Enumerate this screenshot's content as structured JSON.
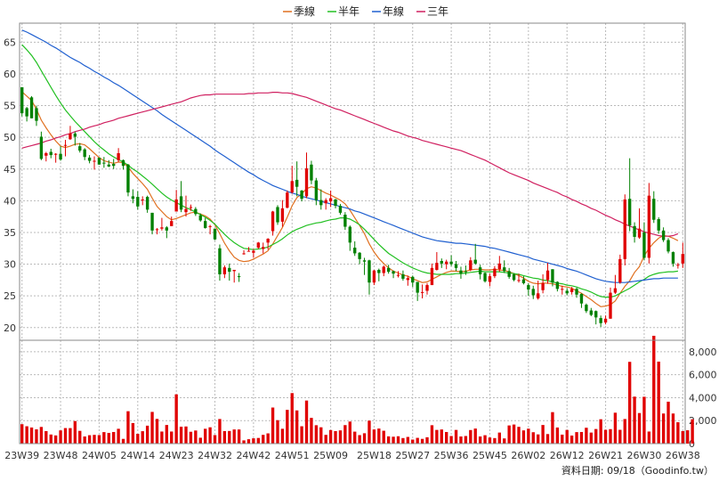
{
  "legend": [
    {
      "label": "季線",
      "color": "#e07020"
    },
    {
      "label": "半年",
      "color": "#22c022"
    },
    {
      "label": "年線",
      "color": "#2060d0"
    },
    {
      "label": "三年",
      "color": "#d02060"
    }
  ],
  "footer_note": "資料日期: 09/18（Goodinfo.tw）",
  "colors": {
    "up": "#e00000",
    "down": "#008000",
    "volume": "#e00000",
    "grid": "#bbbbbb"
  },
  "chart_data": {
    "type": "candlestick",
    "price_axis": {
      "min": 18,
      "max": 68,
      "ticks": [
        20,
        25,
        30,
        35,
        40,
        45,
        50,
        55,
        60,
        65
      ],
      "position": "left"
    },
    "volume_axis": {
      "min": 0,
      "max": 9000,
      "ticks": [
        0,
        2000,
        4000,
        6000,
        8000
      ],
      "tick_labels": [
        "0",
        "2,000",
        "4,000",
        "6,000",
        "8,000"
      ],
      "position": "right"
    },
    "x_labels": [
      "23W39",
      "23W48",
      "24W05",
      "24W14",
      "24W23",
      "24W32",
      "24W42",
      "24W51",
      "25W09",
      "25W18",
      "25W27",
      "25W36",
      "25W45",
      "26W02",
      "26W12",
      "26W21",
      "26W30",
      "26W38"
    ],
    "candles": [
      [
        57.9,
        53.8,
        57.2,
        53.3
      ],
      [
        54.6,
        53.3,
        54.8,
        52.5
      ],
      [
        56.3,
        53.0,
        56.5,
        53.0
      ],
      [
        54.6,
        52.6,
        55.0,
        51.8
      ],
      [
        50.1,
        46.6,
        50.9,
        46.4
      ],
      [
        47.1,
        47.5,
        47.7,
        46.2
      ],
      [
        47.7,
        47.2,
        48.2,
        46.7
      ],
      [
        47.3,
        47.4,
        47.5,
        46.0
      ],
      [
        47.4,
        46.5,
        48.6,
        46.3
      ],
      [
        48.7,
        48.8,
        49.6,
        47.0
      ],
      [
        49.7,
        50.6,
        51.8,
        49.6
      ],
      [
        50.6,
        50.1,
        50.9,
        48.7
      ],
      [
        48.6,
        47.9,
        49.1,
        47.6
      ],
      [
        48.1,
        46.9,
        48.3,
        46.4
      ],
      [
        46.8,
        46.3,
        47.2,
        45.9
      ],
      [
        46.3,
        46.3,
        47.0,
        44.9
      ],
      [
        46.8,
        45.7,
        46.8,
        45.7
      ],
      [
        46.0,
        45.9,
        46.9,
        45.2
      ],
      [
        45.7,
        45.4,
        46.4,
        45.3
      ],
      [
        45.8,
        45.5,
        46.6,
        45.0
      ],
      [
        46.4,
        47.5,
        48.3,
        46.1
      ],
      [
        46.4,
        45.5,
        46.5,
        44.9
      ],
      [
        45.7,
        41.3,
        45.8,
        40.7
      ],
      [
        40.7,
        40.3,
        41.8,
        39.6
      ],
      [
        40.6,
        39.1,
        41.5,
        38.6
      ],
      [
        40.2,
        40.2,
        40.7,
        39.3
      ],
      [
        40.6,
        38.6,
        40.8,
        38.1
      ],
      [
        38.1,
        35.3,
        38.1,
        34.7
      ],
      [
        35.4,
        35.5,
        35.7,
        34.7
      ],
      [
        35.6,
        35.8,
        37.3,
        35.3
      ],
      [
        35.8,
        35.3,
        36.0,
        34.1
      ],
      [
        36.0,
        36.8,
        37.5,
        36.0
      ],
      [
        38.3,
        40.2,
        41.7,
        38.3
      ],
      [
        40.7,
        38.6,
        43.1,
        38.2
      ],
      [
        38.2,
        38.7,
        40.8,
        37.5
      ],
      [
        38.9,
        39.0,
        39.4,
        38.4
      ],
      [
        38.7,
        37.9,
        39.0,
        37.6
      ],
      [
        37.7,
        36.9,
        38.0,
        36.7
      ],
      [
        36.8,
        35.7,
        37.3,
        35.6
      ],
      [
        35.9,
        36.0,
        36.2,
        34.7
      ],
      [
        35.6,
        33.9,
        35.6,
        33.8
      ],
      [
        32.5,
        28.4,
        33.1,
        27.4
      ],
      [
        28.4,
        29.5,
        29.8,
        27.8
      ],
      [
        29.4,
        28.8,
        30.1,
        27.4
      ],
      [
        28.9,
        29.1,
        29.1,
        27.1
      ],
      [
        28.1,
        28.0,
        28.6,
        27.2
      ],
      [
        31.7,
        31.7,
        32.2,
        31.5
      ],
      [
        32.0,
        32.1,
        32.7,
        32.0
      ],
      [
        31.8,
        32.1,
        32.4,
        31.0
      ],
      [
        32.6,
        33.4,
        33.5,
        32.4
      ],
      [
        32.4,
        32.7,
        33.4,
        31.7
      ],
      [
        33.4,
        34.0,
        34.1,
        32.3
      ],
      [
        35.2,
        38.3,
        38.4,
        34.5
      ],
      [
        39.0,
        36.6,
        39.3,
        36.2
      ],
      [
        36.7,
        38.8,
        40.1,
        35.9
      ],
      [
        38.9,
        41.3,
        41.6,
        38.8
      ],
      [
        41.3,
        43.1,
        45.5,
        41.1
      ],
      [
        43.3,
        42.2,
        46.2,
        40.7
      ],
      [
        41.6,
        40.3,
        41.7,
        39.9
      ],
      [
        40.7,
        45.1,
        47.6,
        40.4
      ],
      [
        45.7,
        43.2,
        46.3,
        42.6
      ],
      [
        43.2,
        40.1,
        43.6,
        39.3
      ],
      [
        40.1,
        39.3,
        41.8,
        38.6
      ],
      [
        39.6,
        40.1,
        40.4,
        38.6
      ],
      [
        39.9,
        40.4,
        41.6,
        39.0
      ],
      [
        40.2,
        39.2,
        40.3,
        38.8
      ],
      [
        39.2,
        38.1,
        39.5,
        37.8
      ],
      [
        37.8,
        35.9,
        38.2,
        35.4
      ],
      [
        35.9,
        33.4,
        36.1,
        32.1
      ],
      [
        32.6,
        31.7,
        33.6,
        31.3
      ],
      [
        31.8,
        30.8,
        31.9,
        30.0
      ],
      [
        30.6,
        30.4,
        31.0,
        28.3
      ],
      [
        30.6,
        27.1,
        30.7,
        25.2
      ],
      [
        27.1,
        29.0,
        29.1,
        26.7
      ],
      [
        29.1,
        28.6,
        29.3,
        27.3
      ],
      [
        28.6,
        29.6,
        29.8,
        28.1
      ],
      [
        29.4,
        28.8,
        29.9,
        28.5
      ],
      [
        28.9,
        28.5,
        29.0,
        27.8
      ],
      [
        28.3,
        28.3,
        28.9,
        27.9
      ],
      [
        28.4,
        27.7,
        29.0,
        27.4
      ],
      [
        27.5,
        27.8,
        28.2,
        26.6
      ],
      [
        28.0,
        27.1,
        28.2,
        26.4
      ],
      [
        27.2,
        25.5,
        27.2,
        24.2
      ],
      [
        25.5,
        25.6,
        26.8,
        24.6
      ],
      [
        25.8,
        26.7,
        27.0,
        25.2
      ],
      [
        26.7,
        29.4,
        30.1,
        26.7
      ],
      [
        29.1,
        30.2,
        31.9,
        29.0
      ],
      [
        30.5,
        30.1,
        30.9,
        29.4
      ],
      [
        30.0,
        30.4,
        30.7,
        29.2
      ],
      [
        30.4,
        30.0,
        31.4,
        29.7
      ],
      [
        30.0,
        29.4,
        30.5,
        28.9
      ],
      [
        29.0,
        28.5,
        29.6,
        27.7
      ],
      [
        28.9,
        28.8,
        29.8,
        28.3
      ],
      [
        29.1,
        30.6,
        31.1,
        28.9
      ],
      [
        30.7,
        30.1,
        33.2,
        29.9
      ],
      [
        29.5,
        28.4,
        29.9,
        27.6
      ],
      [
        28.6,
        27.3,
        28.7,
        27.1
      ],
      [
        27.2,
        28.1,
        28.5,
        26.5
      ],
      [
        28.1,
        29.3,
        29.7,
        27.8
      ],
      [
        29.2,
        30.1,
        31.3,
        28.8
      ],
      [
        29.5,
        28.9,
        30.6,
        28.6
      ],
      [
        28.9,
        28.0,
        29.4,
        27.7
      ],
      [
        28.4,
        27.5,
        28.6,
        27.3
      ],
      [
        27.5,
        27.5,
        28.5,
        27.1
      ],
      [
        27.6,
        27.0,
        28.1,
        26.8
      ],
      [
        26.7,
        26.0,
        27.0,
        25.0
      ],
      [
        26.1,
        25.1,
        26.6,
        24.5
      ],
      [
        24.6,
        25.4,
        27.4,
        24.4
      ],
      [
        25.9,
        27.0,
        28.4,
        25.4
      ],
      [
        27.5,
        29.0,
        30.2,
        26.9
      ],
      [
        29.2,
        27.1,
        29.2,
        26.5
      ],
      [
        27.2,
        26.1,
        27.3,
        25.7
      ],
      [
        26.1,
        26.1,
        26.6,
        25.2
      ],
      [
        25.8,
        25.4,
        26.2,
        25.1
      ],
      [
        25.6,
        26.1,
        26.4,
        25.2
      ],
      [
        26.1,
        25.2,
        26.3,
        24.7
      ],
      [
        25.3,
        23.8,
        25.4,
        23.1
      ],
      [
        23.6,
        22.6,
        23.8,
        22.3
      ],
      [
        22.7,
        22.0,
        23.1,
        21.8
      ],
      [
        22.6,
        21.6,
        22.7,
        20.5
      ],
      [
        21.5,
        20.7,
        21.9,
        20.1
      ],
      [
        20.8,
        21.4,
        21.9,
        20.5
      ],
      [
        21.4,
        25.5,
        26.3,
        21.4
      ],
      [
        25.5,
        26.2,
        28.3,
        25.3
      ],
      [
        27.1,
        30.8,
        31.5,
        26.9
      ],
      [
        30.8,
        40.2,
        41.0,
        29.8
      ],
      [
        40.3,
        36.1,
        46.7,
        35.2
      ],
      [
        36.0,
        34.3,
        36.6,
        33.4
      ],
      [
        34.2,
        35.6,
        38.8,
        34.0
      ],
      [
        35.0,
        31.0,
        36.6,
        30.6
      ],
      [
        31.0,
        40.8,
        42.8,
        30.1
      ],
      [
        40.3,
        37.0,
        41.5,
        36.5
      ],
      [
        37.1,
        35.3,
        37.4,
        34.8
      ],
      [
        35.3,
        33.8,
        35.8,
        33.5
      ],
      [
        33.8,
        32.0,
        34.1,
        31.7
      ],
      [
        31.9,
        30.1,
        32.0,
        29.6
      ],
      [
        29.9,
        29.9,
        30.2,
        29.3
      ],
      [
        30.1,
        31.6,
        33.4,
        29.4
      ]
    ],
    "volume": [
      1690,
      1510,
      1400,
      1240,
      1450,
      1090,
      790,
      710,
      1150,
      1350,
      1350,
      1960,
      1110,
      620,
      730,
      760,
      740,
      1000,
      930,
      1010,
      1290,
      410,
      2820,
      1790,
      850,
      1080,
      1560,
      2760,
      2150,
      1050,
      1620,
      1050,
      4290,
      1470,
      1490,
      1030,
      1140,
      510,
      1290,
      1420,
      740,
      2140,
      1090,
      1100,
      1230,
      1230,
      280,
      380,
      460,
      490,
      760,
      890,
      3140,
      2040,
      1290,
      2940,
      4400,
      2890,
      1510,
      3750,
      2240,
      1600,
      1420,
      760,
      1180,
      1090,
      1150,
      1610,
      1920,
      1040,
      740,
      900,
      2000,
      1230,
      1310,
      1120,
      630,
      600,
      640,
      480,
      580,
      350,
      500,
      410,
      550,
      1600,
      1190,
      1230,
      1010,
      660,
      1190,
      620,
      660,
      1180,
      1310,
      620,
      730,
      530,
      480,
      960,
      450,
      1580,
      1660,
      1460,
      1150,
      1300,
      990,
      800,
      1620,
      830,
      2740,
      1400,
      780,
      1190,
      700,
      1000,
      1010,
      1380,
      960,
      1270,
      2120,
      1200,
      1260,
      2690,
      1200,
      2140,
      7120,
      4090,
      2660,
      4080,
      1050,
      9390,
      7140,
      2620,
      3650,
      2620,
      1860,
      1090,
      1160,
      2120
    ],
    "ma_quarter": [
      57.2,
      56.5,
      55.8,
      54.4,
      52.7,
      51.5,
      50.4,
      49.4,
      48.6,
      48.4,
      48.6,
      48.9,
      49.0,
      48.8,
      48.2,
      47.5,
      46.8,
      46.3,
      46.1,
      45.9,
      46.1,
      46.0,
      45.3,
      44.3,
      43.5,
      42.7,
      41.8,
      40.4,
      39.1,
      38.3,
      37.5,
      37.0,
      37.2,
      37.5,
      37.8,
      38.1,
      38.2,
      37.9,
      37.6,
      37.1,
      36.2,
      34.8,
      33.3,
      32.1,
      31.1,
      30.6,
      30.4,
      30.5,
      30.8,
      31.2,
      31.6,
      32.1,
      33.2,
      34.5,
      35.8,
      37.4,
      39.2,
      40.5,
      41.1,
      41.9,
      42.2,
      42.0,
      41.6,
      41.2,
      40.9,
      40.5,
      40.1,
      39.5,
      38.5,
      37.3,
      36.1,
      34.8,
      33.2,
      31.9,
      30.9,
      30.1,
      29.4,
      28.9,
      28.6,
      28.3,
      28.1,
      27.7,
      27.4,
      27.1,
      27.2,
      27.6,
      28.0,
      28.4,
      28.7,
      28.9,
      28.9,
      28.8,
      28.9,
      29.1,
      29.2,
      29.2,
      29.1,
      29.1,
      29.2,
      29.1,
      29.0,
      28.8,
      28.5,
      28.2,
      27.8,
      27.3,
      27.0,
      26.9,
      27.0,
      27.0,
      26.9,
      26.7,
      26.5,
      26.4,
      26.2,
      25.8,
      25.4,
      24.9,
      24.4,
      23.8,
      23.3,
      23.4,
      23.6,
      24.2,
      25.4,
      26.5,
      27.4,
      28.7,
      29.6,
      31.3,
      32.5,
      33.4,
      34.1,
      34.5,
      34.4,
      34.1,
      33.7
    ],
    "ma_half": [
      64.6,
      63.8,
      62.9,
      61.8,
      60.5,
      59.2,
      57.9,
      56.6,
      55.4,
      54.3,
      53.4,
      52.5,
      51.7,
      50.9,
      50.1,
      49.3,
      48.6,
      48.0,
      47.4,
      46.9,
      46.5,
      46.1,
      45.6,
      45.0,
      44.5,
      43.9,
      43.3,
      42.6,
      41.9,
      41.2,
      40.6,
      40.1,
      39.7,
      39.3,
      38.9,
      38.6,
      38.2,
      37.8,
      37.4,
      36.9,
      36.3,
      35.5,
      34.7,
      34.0,
      33.4,
      32.9,
      32.5,
      32.4,
      32.3,
      32.4,
      32.5,
      32.7,
      33.1,
      33.5,
      34.0,
      34.6,
      35.1,
      35.5,
      35.8,
      36.1,
      36.3,
      36.5,
      36.6,
      36.8,
      37.0,
      37.1,
      37.3,
      37.3,
      37.1,
      36.7,
      36.2,
      35.5,
      34.7,
      33.9,
      33.1,
      32.4,
      31.7,
      31.2,
      30.7,
      30.2,
      29.8,
      29.4,
      29.1,
      28.8,
      28.6,
      28.5,
      28.4,
      28.4,
      28.4,
      28.4,
      28.5,
      28.5,
      28.6,
      28.7,
      28.8,
      28.9,
      28.8,
      28.8,
      28.8,
      28.8,
      28.7,
      28.6,
      28.5,
      28.4,
      28.2,
      28.0,
      27.8,
      27.7,
      27.5,
      27.4,
      27.2,
      27.0,
      26.9,
      26.7,
      26.6,
      26.4,
      26.1,
      25.9,
      25.6,
      25.2,
      24.9,
      24.8,
      24.8,
      25.0,
      25.4,
      25.8,
      26.2,
      26.7,
      27.2,
      27.6,
      28.1,
      28.4,
      28.6,
      28.7,
      28.8,
      28.8,
      28.9
    ],
    "ma_year": [
      66.9,
      66.6,
      66.2,
      65.8,
      65.4,
      65.0,
      64.5,
      64.1,
      63.6,
      63.1,
      62.6,
      62.2,
      61.8,
      61.3,
      60.9,
      60.4,
      60.0,
      59.5,
      59.1,
      58.6,
      58.2,
      57.7,
      57.2,
      56.7,
      56.2,
      55.7,
      55.2,
      54.7,
      54.2,
      53.6,
      53.1,
      52.6,
      52.1,
      51.6,
      51.1,
      50.6,
      50.1,
      49.6,
      49.1,
      48.6,
      48.0,
      47.5,
      47.0,
      46.5,
      46.0,
      45.5,
      45.0,
      44.5,
      44.1,
      43.6,
      43.2,
      42.8,
      42.4,
      42.1,
      41.8,
      41.5,
      41.2,
      41.0,
      40.7,
      40.5,
      40.3,
      40.1,
      39.9,
      39.7,
      39.5,
      39.3,
      39.1,
      38.9,
      38.7,
      38.4,
      38.2,
      37.9,
      37.6,
      37.3,
      37.0,
      36.7,
      36.4,
      36.1,
      35.8,
      35.5,
      35.2,
      34.9,
      34.6,
      34.3,
      34.1,
      33.9,
      33.7,
      33.6,
      33.5,
      33.4,
      33.3,
      33.3,
      33.2,
      33.1,
      33.0,
      32.9,
      32.8,
      32.6,
      32.5,
      32.3,
      32.1,
      31.9,
      31.7,
      31.5,
      31.3,
      31.1,
      30.8,
      30.6,
      30.4,
      30.2,
      30.0,
      29.8,
      29.6,
      29.3,
      29.1,
      28.9,
      28.6,
      28.3,
      28.0,
      27.7,
      27.5,
      27.3,
      27.2,
      27.1,
      27.1,
      27.1,
      27.2,
      27.3,
      27.4,
      27.5,
      27.6,
      27.7,
      27.7,
      27.8,
      27.8,
      27.8,
      27.8
    ],
    "ma_3year": [
      48.3,
      48.5,
      48.7,
      48.9,
      49.1,
      49.4,
      49.6,
      49.9,
      50.1,
      50.4,
      50.6,
      50.9,
      51.1,
      51.3,
      51.6,
      51.8,
      52.0,
      52.3,
      52.5,
      52.7,
      53.0,
      53.2,
      53.4,
      53.6,
      53.8,
      54.0,
      54.2,
      54.4,
      54.6,
      54.8,
      55.0,
      55.2,
      55.4,
      55.6,
      55.9,
      56.2,
      56.4,
      56.6,
      56.7,
      56.7,
      56.8,
      56.8,
      56.8,
      56.8,
      56.8,
      56.8,
      56.8,
      56.9,
      56.9,
      57.0,
      57.0,
      57.0,
      57.1,
      57.1,
      57.0,
      57.0,
      56.9,
      56.7,
      56.5,
      56.3,
      56.0,
      55.7,
      55.4,
      55.1,
      54.8,
      54.5,
      54.3,
      54.0,
      53.7,
      53.4,
      53.1,
      52.8,
      52.5,
      52.2,
      51.9,
      51.6,
      51.3,
      51.0,
      50.8,
      50.5,
      50.2,
      50.0,
      49.8,
      49.5,
      49.3,
      49.1,
      48.9,
      48.7,
      48.5,
      48.3,
      48.1,
      47.9,
      47.6,
      47.3,
      47.0,
      46.7,
      46.4,
      46.0,
      45.6,
      45.2,
      44.8,
      44.4,
      44.1,
      43.8,
      43.5,
      43.2,
      42.8,
      42.5,
      42.2,
      41.9,
      41.6,
      41.3,
      40.9,
      40.6,
      40.2,
      39.9,
      39.5,
      39.2,
      38.8,
      38.5,
      38.1,
      37.7,
      37.4,
      37.0,
      36.7,
      36.3,
      36.0,
      35.7,
      35.4,
      35.1,
      34.9,
      34.7,
      34.5,
      34.4,
      34.4,
      34.5,
      34.8
    ]
  }
}
